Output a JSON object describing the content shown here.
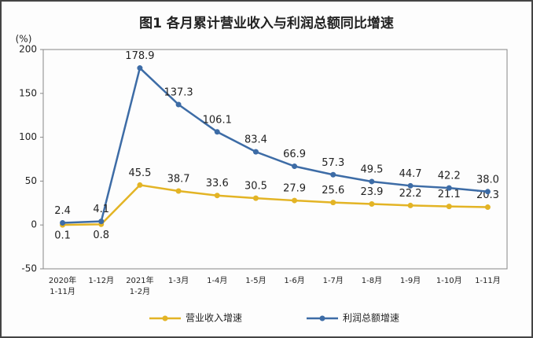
{
  "chart_data": {
    "type": "line",
    "title": "图1  各月累计营业收入与利润总额同比增速",
    "y_label": "(%)",
    "categories": [
      [
        "2020年",
        "1-11月"
      ],
      "1-12月",
      [
        "2021年",
        "1-2月"
      ],
      "1-3月",
      "1-4月",
      "1-5月",
      "1-6月",
      "1-7月",
      "1-8月",
      "1-9月",
      "1-10月",
      "1-11月"
    ],
    "series": [
      {
        "name": "营业收入增速",
        "color": "#e3b425",
        "values": [
          0.1,
          0.8,
          45.5,
          38.7,
          33.6,
          30.5,
          27.9,
          25.6,
          23.9,
          22.2,
          21.1,
          20.3
        ],
        "value_labels": [
          "0.1",
          "0.8",
          "45.5",
          "38.7",
          "33.6",
          "30.5",
          "27.9",
          "25.6",
          "23.9",
          "22.2",
          "21.1",
          "20.3"
        ]
      },
      {
        "name": "利润总额增速",
        "color": "#3d6ca6",
        "values": [
          2.4,
          4.1,
          178.9,
          137.3,
          106.1,
          83.4,
          66.9,
          57.3,
          49.5,
          44.7,
          42.2,
          38.0
        ],
        "value_labels": [
          "2.4",
          "4.1",
          "178.9",
          "137.3",
          "106.1",
          "83.4",
          "66.9",
          "57.3",
          "49.5",
          "44.7",
          "42.2",
          "38.0"
        ]
      }
    ],
    "ylim": [
      -50,
      200
    ],
    "yticks": [
      -50,
      0,
      50,
      100,
      150,
      200
    ],
    "grid": false
  }
}
